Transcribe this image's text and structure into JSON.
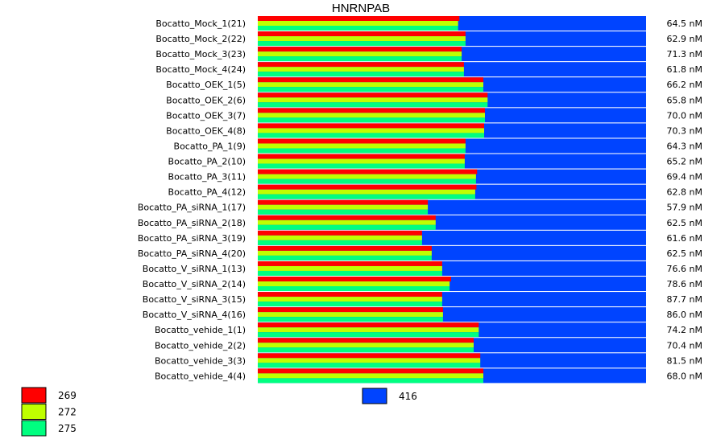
{
  "chart_data": {
    "type": "bar",
    "title": "HNRNPAB",
    "xlim": [
      0,
      1
    ],
    "samples": [
      {
        "label": "Bocatto_Mock_1(21)",
        "s269": 0.519,
        "s272": 0.516,
        "s275": 0.516,
        "conc": "64.5 nM"
      },
      {
        "label": "Bocatto_Mock_2(22)",
        "s269": 0.535,
        "s272": 0.535,
        "s275": 0.535,
        "conc": "62.9 nM"
      },
      {
        "label": "Bocatto_Mock_3(23)",
        "s269": 0.525,
        "s272": 0.525,
        "s275": 0.525,
        "conc": "71.3 nM"
      },
      {
        "label": "Bocatto_Mock_4(24)",
        "s269": 0.531,
        "s272": 0.531,
        "s275": 0.531,
        "conc": "61.8 nM"
      },
      {
        "label": "Bocatto_OEK_1(5)",
        "s269": 0.581,
        "s272": 0.581,
        "s275": 0.581,
        "conc": "66.2 nM"
      },
      {
        "label": "Bocatto_OEK_2(6)",
        "s269": 0.592,
        "s272": 0.592,
        "s275": 0.592,
        "conc": "65.8 nM"
      },
      {
        "label": "Bocatto_OEK_3(7)",
        "s269": 0.585,
        "s272": 0.585,
        "s275": 0.585,
        "conc": "70.0 nM"
      },
      {
        "label": "Bocatto_OEK_4(8)",
        "s269": 0.583,
        "s272": 0.583,
        "s275": 0.583,
        "conc": "70.3 nM"
      },
      {
        "label": "Bocatto_PA_1(9)",
        "s269": 0.535,
        "s272": 0.535,
        "s275": 0.535,
        "conc": "64.3 nM"
      },
      {
        "label": "Bocatto_PA_2(10)",
        "s269": 0.533,
        "s272": 0.533,
        "s275": 0.533,
        "conc": "65.2 nM"
      },
      {
        "label": "Bocatto_PA_3(11)",
        "s269": 0.565,
        "s272": 0.562,
        "s275": 0.562,
        "conc": "69.4 nM"
      },
      {
        "label": "Bocatto_PA_4(12)",
        "s269": 0.563,
        "s272": 0.56,
        "s275": 0.56,
        "conc": "62.8 nM"
      },
      {
        "label": "Bocatto_PA_siRNA_1(17)",
        "s269": 0.438,
        "s272": 0.438,
        "s275": 0.438,
        "conc": "57.9 nM"
      },
      {
        "label": "Bocatto_PA_siRNA_2(18)",
        "s269": 0.458,
        "s272": 0.458,
        "s275": 0.458,
        "conc": "62.5 nM"
      },
      {
        "label": "Bocatto_PA_siRNA_3(19)",
        "s269": 0.423,
        "s272": 0.423,
        "s275": 0.423,
        "conc": "61.6 nM"
      },
      {
        "label": "Bocatto_PA_siRNA_4(20)",
        "s269": 0.448,
        "s272": 0.448,
        "s275": 0.448,
        "conc": "62.5 nM"
      },
      {
        "label": "Bocatto_V_siRNA_1(13)",
        "s269": 0.475,
        "s272": 0.475,
        "s275": 0.475,
        "conc": "76.6 nM"
      },
      {
        "label": "Bocatto_V_siRNA_2(14)",
        "s269": 0.498,
        "s272": 0.494,
        "s275": 0.494,
        "conc": "78.6 nM"
      },
      {
        "label": "Bocatto_V_siRNA_3(15)",
        "s269": 0.475,
        "s272": 0.475,
        "s275": 0.475,
        "conc": "87.7 nM"
      },
      {
        "label": "Bocatto_V_siRNA_4(16)",
        "s269": 0.477,
        "s272": 0.477,
        "s275": 0.477,
        "conc": "86.0 nM"
      },
      {
        "label": "Bocatto_vehide_1(1)",
        "s269": 0.569,
        "s272": 0.569,
        "s275": 0.569,
        "conc": "74.2 nM"
      },
      {
        "label": "Bocatto_vehide_2(2)",
        "s269": 0.556,
        "s272": 0.556,
        "s275": 0.556,
        "conc": "70.4 nM"
      },
      {
        "label": "Bocatto_vehide_3(3)",
        "s269": 0.573,
        "s272": 0.573,
        "s275": 0.573,
        "conc": "81.5 nM"
      },
      {
        "label": "Bocatto_vehide_4(4)",
        "s269": 0.581,
        "s272": 0.581,
        "s275": 0.581,
        "conc": "68.0 nM"
      }
    ],
    "series": [
      {
        "name": "269",
        "key": "s269",
        "color": "#ff0000"
      },
      {
        "name": "272",
        "key": "s272",
        "color": "#bfff00"
      },
      {
        "name": "275",
        "key": "s275",
        "color": "#00ff80"
      },
      {
        "name": "416",
        "key": "total",
        "color": "#0044ff"
      }
    ],
    "legend_left": [
      "269",
      "272",
      "275"
    ],
    "legend_center": "416",
    "legend_placement": "bottom",
    "grid": false
  }
}
